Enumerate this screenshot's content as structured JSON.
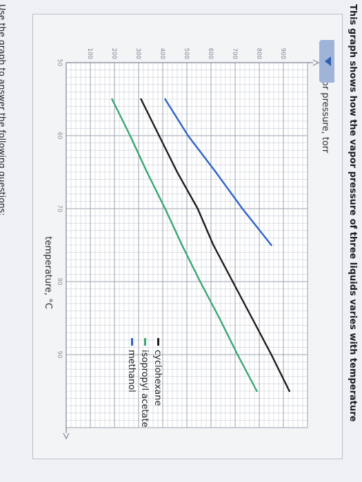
{
  "prompts": {
    "top": "This graph shows how the vapor pressure of three liquids varies with temperature",
    "bottom": "Use the graph to answer the following questions:"
  },
  "colors": {
    "cyclohexane": "#1c1c1c",
    "isopropyl_acetate": "#3aa672",
    "methanol": "#2f63c8",
    "grid_minor": "#c7ccd6",
    "grid_major": "#9aa1ae"
  },
  "icons": {
    "collapse": "triangle-down-icon"
  },
  "chart_data": {
    "type": "line",
    "xlabel": "temperature, °C",
    "ylabel": "vapor pressure, torr",
    "xlim": [
      50,
      100
    ],
    "ylim": [
      0,
      1000
    ],
    "x_ticks": [
      "50",
      "60",
      "70",
      "80",
      "90"
    ],
    "y_ticks": [
      "100",
      "200",
      "300",
      "400",
      "500",
      "600",
      "700",
      "800",
      "900"
    ],
    "grid": true,
    "legend": "right",
    "series": [
      {
        "name": "cyclohexane",
        "color_key": "cyclohexane",
        "x": [
          55,
          60,
          65,
          70,
          75,
          80,
          85,
          90,
          95
        ],
        "y": [
          310,
          385,
          460,
          545,
          610,
          690,
          770,
          850,
          925
        ]
      },
      {
        "name": "isopropyl acetate",
        "color_key": "isopropyl_acetate",
        "x": [
          55,
          60,
          65,
          70,
          75,
          80,
          85,
          90,
          95
        ],
        "y": [
          190,
          265,
          335,
          410,
          480,
          555,
          635,
          710,
          790
        ]
      },
      {
        "name": "methanol",
        "color_key": "methanol",
        "x": [
          55,
          60,
          65,
          70,
          75
        ],
        "y": [
          410,
          505,
          620,
          730,
          850
        ]
      }
    ]
  }
}
